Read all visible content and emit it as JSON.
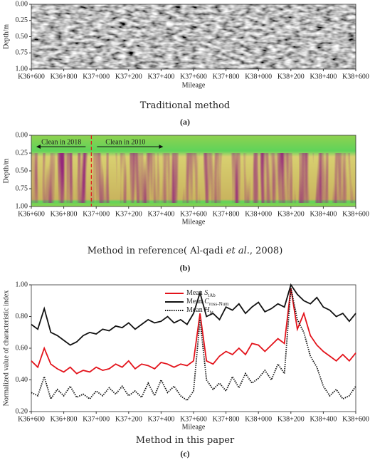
{
  "chart_data": [
    {
      "type": "image",
      "xlabel": "Mileage",
      "ylabel": "Depth/m",
      "palette": "grayscale",
      "xlim": [
        36600,
        38600
      ],
      "xticks": [
        {
          "value": 36600,
          "label": "K36+600"
        },
        {
          "value": 36800,
          "label": "K36+800"
        },
        {
          "value": 37000,
          "label": "K37+000"
        },
        {
          "value": 37200,
          "label": "K37+200"
        },
        {
          "value": 37400,
          "label": "K37+400"
        },
        {
          "value": 37600,
          "label": "K37+600"
        },
        {
          "value": 37800,
          "label": "K37+800"
        },
        {
          "value": 38000,
          "label": "K38+000"
        },
        {
          "value": 38200,
          "label": "K38+200"
        },
        {
          "value": 38400,
          "label": "K38+400"
        },
        {
          "value": 38600,
          "label": "K38+600"
        }
      ],
      "ylim": [
        1,
        0
      ],
      "yticks": [
        {
          "value": 0,
          "label": "0.00"
        },
        {
          "value": 0.25,
          "label": "0.25"
        },
        {
          "value": 0.5,
          "label": "0.50"
        },
        {
          "value": 0.75,
          "label": "0.75"
        },
        {
          "value": 1,
          "label": "1.00"
        }
      ],
      "caption": [
        "Traditional method"
      ],
      "label": "(a)"
    },
    {
      "type": "image",
      "xlabel": "Mileage",
      "ylabel": "Depth/m",
      "palette": "spectral",
      "xlim": [
        36600,
        38600
      ],
      "xticks": [
        {
          "value": 36600,
          "label": "K36+600"
        },
        {
          "value": 36800,
          "label": "K36+800"
        },
        {
          "value": 37000,
          "label": "K37+000"
        },
        {
          "value": 37200,
          "label": "K37+200"
        },
        {
          "value": 37400,
          "label": "K37+400"
        },
        {
          "value": 37600,
          "label": "K37+600"
        },
        {
          "value": 37800,
          "label": "K37+800"
        },
        {
          "value": 38000,
          "label": "K38+000"
        },
        {
          "value": 38200,
          "label": "K38+200"
        },
        {
          "value": 38400,
          "label": "K38+400"
        },
        {
          "value": 38600,
          "label": "K38+600"
        }
      ],
      "ylim": [
        1,
        0
      ],
      "yticks": [
        {
          "value": 0,
          "label": "0.00"
        },
        {
          "value": 0.25,
          "label": "0.25"
        },
        {
          "value": 0.5,
          "label": "0.50"
        },
        {
          "value": 0.75,
          "label": "0.75"
        },
        {
          "value": 1,
          "label": "1.00"
        }
      ],
      "divider_x": 36970,
      "annotations": [
        "Clean in 2018",
        "Clean in 2010"
      ],
      "caption": [
        "Method in reference( Al-qadi ",
        "et al.",
        ", 2008)"
      ],
      "label": "(b)"
    },
    {
      "type": "line",
      "xlabel": "Mileage",
      "ylabel": "Normalized value of characteristic index",
      "legend": "upper center",
      "xlim": [
        36600,
        38600
      ],
      "xticks": [
        {
          "value": 36600,
          "label": "K36+600"
        },
        {
          "value": 36800,
          "label": "K36+800"
        },
        {
          "value": 37000,
          "label": "K37+000"
        },
        {
          "value": 37200,
          "label": "K37+200"
        },
        {
          "value": 37400,
          "label": "K37+400"
        },
        {
          "value": 37600,
          "label": "K37+600"
        },
        {
          "value": 37800,
          "label": "K37+800"
        },
        {
          "value": 38000,
          "label": "K38+000"
        },
        {
          "value": 38200,
          "label": "K38+200"
        },
        {
          "value": 38400,
          "label": "K38+400"
        },
        {
          "value": 38600,
          "label": "K38+600"
        }
      ],
      "ylim": [
        0.2,
        1.0
      ],
      "yticks": [
        {
          "value": 0.2,
          "label": "0.20"
        },
        {
          "value": 0.4,
          "label": "0.40"
        },
        {
          "value": 0.6,
          "label": "0.60"
        },
        {
          "value": 0.8,
          "label": "0.80"
        },
        {
          "value": 1.0,
          "label": "1.00"
        }
      ],
      "x": [
        36600,
        36640,
        36680,
        36720,
        36760,
        36800,
        36840,
        36880,
        36920,
        36960,
        37000,
        37040,
        37080,
        37120,
        37160,
        37200,
        37240,
        37280,
        37320,
        37360,
        37400,
        37440,
        37480,
        37520,
        37560,
        37600,
        37640,
        37680,
        37720,
        37760,
        37800,
        37840,
        37880,
        37920,
        37960,
        38000,
        38040,
        38080,
        38120,
        38160,
        38200,
        38240,
        38280,
        38320,
        38360,
        38400,
        38440,
        38480,
        38520,
        38560,
        38600
      ],
      "series": [
        {
          "name": "Mean",
          "symbol": "S",
          "subscript": "tAb",
          "color": "#e3131b",
          "linestyle": "solid",
          "values": [
            0.52,
            0.48,
            0.6,
            0.5,
            0.47,
            0.45,
            0.48,
            0.44,
            0.46,
            0.45,
            0.48,
            0.46,
            0.47,
            0.5,
            0.48,
            0.52,
            0.47,
            0.5,
            0.49,
            0.47,
            0.51,
            0.5,
            0.48,
            0.5,
            0.49,
            0.52,
            0.82,
            0.52,
            0.5,
            0.55,
            0.58,
            0.56,
            0.6,
            0.56,
            0.63,
            0.62,
            0.58,
            0.62,
            0.66,
            0.63,
            0.98,
            0.72,
            0.82,
            0.68,
            0.62,
            0.58,
            0.55,
            0.52,
            0.56,
            0.52,
            0.57
          ]
        },
        {
          "name": "Mean",
          "symbol": "C",
          "subscript": "ross-Num",
          "color": "#111111",
          "linestyle": "solid",
          "values": [
            0.75,
            0.72,
            0.85,
            0.7,
            0.68,
            0.65,
            0.62,
            0.64,
            0.68,
            0.7,
            0.69,
            0.72,
            0.71,
            0.74,
            0.73,
            0.76,
            0.72,
            0.75,
            0.78,
            0.76,
            0.77,
            0.8,
            0.76,
            0.78,
            0.75,
            0.82,
            0.95,
            0.8,
            0.82,
            0.78,
            0.86,
            0.84,
            0.88,
            0.82,
            0.86,
            0.89,
            0.83,
            0.85,
            0.88,
            0.86,
            1.0,
            0.94,
            0.9,
            0.88,
            0.92,
            0.86,
            0.84,
            0.8,
            0.82,
            0.77,
            0.82
          ]
        },
        {
          "name": "Mean",
          "symbol": "H",
          "subscript": "bt",
          "color": "#111111",
          "linestyle": "dotted",
          "values": [
            0.32,
            0.3,
            0.42,
            0.28,
            0.34,
            0.3,
            0.36,
            0.29,
            0.31,
            0.28,
            0.33,
            0.3,
            0.35,
            0.31,
            0.36,
            0.3,
            0.33,
            0.29,
            0.38,
            0.3,
            0.4,
            0.32,
            0.36,
            0.3,
            0.27,
            0.33,
            0.78,
            0.4,
            0.34,
            0.38,
            0.33,
            0.42,
            0.35,
            0.44,
            0.38,
            0.41,
            0.46,
            0.4,
            0.5,
            0.44,
            0.98,
            0.78,
            0.7,
            0.55,
            0.48,
            0.36,
            0.3,
            0.34,
            0.28,
            0.3,
            0.36
          ]
        }
      ],
      "caption": [
        "Method in this paper"
      ],
      "label": "(c)"
    }
  ]
}
